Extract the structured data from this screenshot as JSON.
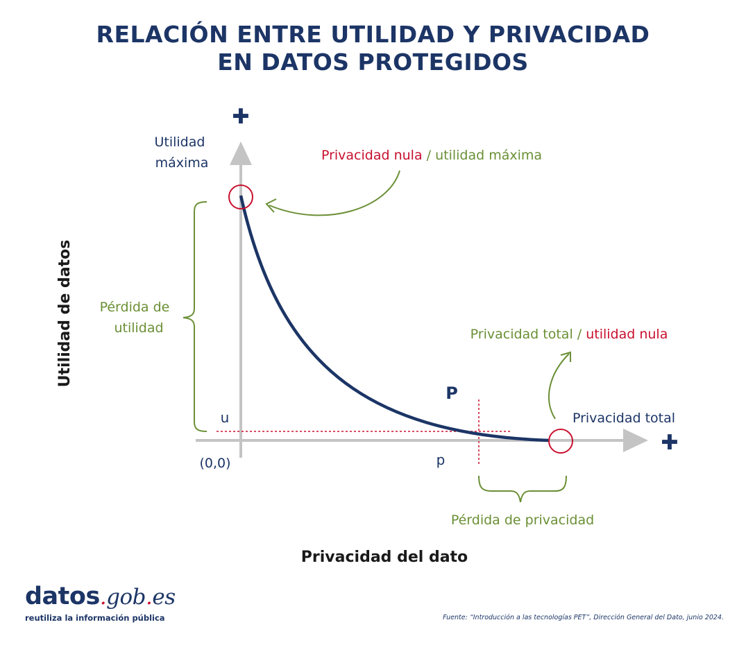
{
  "title": {
    "line1": "RELACIÓN ENTRE UTILIDAD Y PRIVACIDAD",
    "line2": "EN DATOS PROTEGIDOS"
  },
  "axes": {
    "y_title": "Utilidad de datos",
    "x_title": "Privacidad del dato",
    "y_max_label_line1": "Utilidad",
    "y_max_label_line2": "máxima",
    "x_max_label": "Privacidad total",
    "origin_label": "(0,0)",
    "plus_symbol": "✚"
  },
  "annotations": {
    "top_callout_part1": "Privacidad nula",
    "top_callout_sep": " / ",
    "top_callout_part2": "utilidad máxima",
    "right_callout_part1": "Privacidad total",
    "right_callout_sep": " / ",
    "right_callout_part2": "utilidad nula",
    "utility_loss_line1": "Pérdida de",
    "utility_loss_line2": "utilidad",
    "privacy_loss": "Pérdida de privacidad",
    "point_P": "P",
    "u_label": "u",
    "p_label": "p"
  },
  "footer": {
    "logo_main": "datos",
    "logo_dot": ".",
    "logo_gob": "gob",
    "logo_es": "es",
    "tagline": "reutiliza la información pública",
    "source": "Fuente: “Introducción a las tecnologías PET”, Dirección General del Dato, junio 2024."
  },
  "colors": {
    "navy": "#1c3566",
    "green": "#6a8f35",
    "red": "#c8102e",
    "axis_gray": "#c4c4c4",
    "black": "#1a1a1a"
  }
}
